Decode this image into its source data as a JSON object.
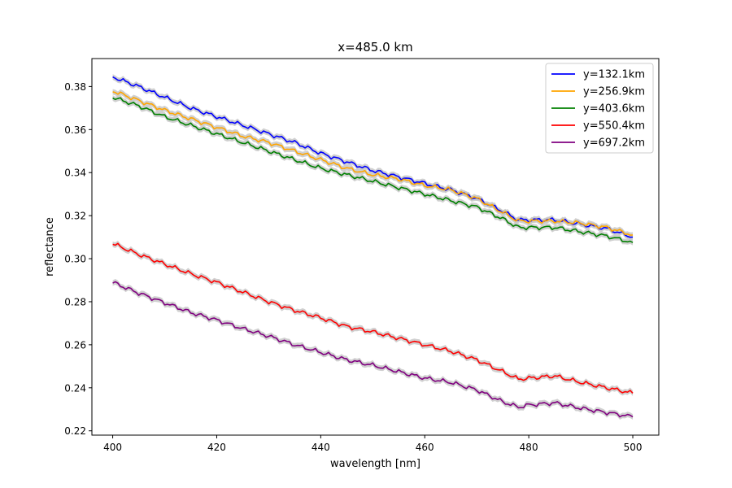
{
  "chart_data": {
    "type": "line",
    "title": "x=485.0 km",
    "xlabel": "wavelength [nm]",
    "ylabel": "reflectance",
    "xlim": [
      396,
      505
    ],
    "ylim": [
      0.218,
      0.393
    ],
    "xticks": [
      400,
      420,
      440,
      460,
      480,
      500
    ],
    "xtick_labels": [
      "400",
      "420",
      "440",
      "460",
      "480",
      "500"
    ],
    "yticks": [
      0.22,
      0.24,
      0.26,
      0.28,
      0.3,
      0.32,
      0.34,
      0.36,
      0.38
    ],
    "ytick_labels": [
      "0.22",
      "0.24",
      "0.26",
      "0.28",
      "0.30",
      "0.32",
      "0.34",
      "0.36",
      "0.38"
    ],
    "grid": false,
    "legend_position": "top-right",
    "uncertainty_band_color": "#c8c8c8",
    "series": [
      {
        "name": "y=132.1km",
        "color": "#0000ff",
        "x": [
          400,
          405,
          410,
          415,
          420,
          425,
          430,
          435,
          440,
          445,
          450,
          455,
          460,
          465,
          470,
          475,
          478,
          480,
          485,
          490,
          495,
          500
        ],
        "y": [
          0.3845,
          0.38,
          0.375,
          0.37,
          0.366,
          0.362,
          0.358,
          0.354,
          0.349,
          0.345,
          0.341,
          0.338,
          0.335,
          0.332,
          0.328,
          0.322,
          0.318,
          0.318,
          0.318,
          0.316,
          0.314,
          0.31
        ]
      },
      {
        "name": "y=256.9km",
        "color": "#ffa500",
        "x": [
          400,
          405,
          410,
          415,
          420,
          425,
          430,
          435,
          440,
          445,
          450,
          455,
          460,
          465,
          470,
          475,
          478,
          480,
          485,
          490,
          495,
          500
        ],
        "y": [
          0.378,
          0.3735,
          0.369,
          0.365,
          0.361,
          0.357,
          0.354,
          0.35,
          0.346,
          0.342,
          0.339,
          0.337,
          0.334,
          0.332,
          0.328,
          0.3215,
          0.3175,
          0.3175,
          0.3175,
          0.3165,
          0.3145,
          0.311
        ]
      },
      {
        "name": "y=403.6km",
        "color": "#008000",
        "x": [
          400,
          405,
          410,
          415,
          420,
          425,
          430,
          435,
          440,
          445,
          450,
          455,
          460,
          465,
          470,
          475,
          478,
          480,
          485,
          490,
          495,
          500
        ],
        "y": [
          0.375,
          0.371,
          0.366,
          0.362,
          0.358,
          0.354,
          0.35,
          0.346,
          0.342,
          0.339,
          0.336,
          0.333,
          0.33,
          0.327,
          0.324,
          0.3185,
          0.3145,
          0.3145,
          0.3145,
          0.3125,
          0.3105,
          0.3075
        ]
      },
      {
        "name": "y=550.4km",
        "color": "#ff0000",
        "x": [
          400,
          405,
          410,
          415,
          420,
          425,
          430,
          435,
          440,
          445,
          450,
          455,
          460,
          465,
          470,
          475,
          478,
          480,
          485,
          490,
          495,
          500
        ],
        "y": [
          0.307,
          0.302,
          0.2975,
          0.293,
          0.289,
          0.2845,
          0.28,
          0.276,
          0.2725,
          0.2685,
          0.266,
          0.263,
          0.26,
          0.257,
          0.253,
          0.2475,
          0.244,
          0.2445,
          0.2455,
          0.2425,
          0.24,
          0.2375
        ]
      },
      {
        "name": "y=697.2km",
        "color": "#800080",
        "x": [
          400,
          405,
          410,
          415,
          420,
          425,
          430,
          435,
          440,
          445,
          450,
          455,
          460,
          465,
          470,
          475,
          478,
          480,
          485,
          490,
          495,
          500
        ],
        "y": [
          0.289,
          0.284,
          0.2795,
          0.275,
          0.2715,
          0.2675,
          0.264,
          0.26,
          0.2565,
          0.253,
          0.2505,
          0.2475,
          0.2445,
          0.2425,
          0.239,
          0.2335,
          0.231,
          0.232,
          0.233,
          0.2305,
          0.2285,
          0.2265
        ]
      }
    ]
  }
}
